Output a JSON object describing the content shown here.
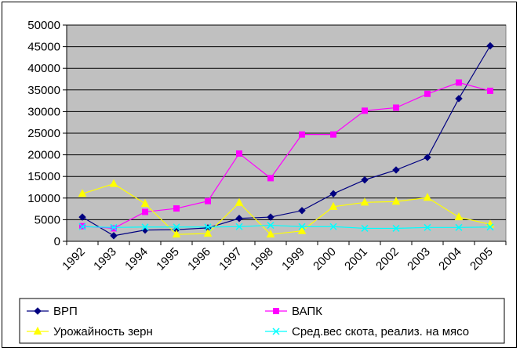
{
  "chart_data": {
    "type": "line",
    "title": "",
    "xlabel": "",
    "ylabel": "",
    "categories": [
      "1992",
      "1993",
      "1994",
      "1995",
      "1996",
      "1997",
      "1998",
      "1999",
      "2000",
      "2001",
      "2002",
      "2003",
      "2004",
      "2005"
    ],
    "ylim": [
      0,
      50000
    ],
    "yticks": [
      0,
      5000,
      10000,
      15000,
      20000,
      25000,
      30000,
      35000,
      40000,
      45000,
      50000
    ],
    "grid": "horizontal",
    "plot_background": "#C0C0C0",
    "legend_position": "bottom",
    "series": [
      {
        "name": "ВРП",
        "color": "#000080",
        "marker": "diamond",
        "values": [
          5600,
          1300,
          2600,
          2700,
          3100,
          5300,
          5600,
          7100,
          11000,
          14200,
          16500,
          19400,
          33000,
          45200
        ]
      },
      {
        "name": "ВАПК",
        "color": "#FF00FF",
        "marker": "square",
        "values": [
          3500,
          3000,
          6800,
          7600,
          9300,
          20300,
          14600,
          24700,
          24700,
          30200,
          30900,
          34100,
          36700,
          34800
        ]
      },
      {
        "name": "Урожайность зерн",
        "color": "#FFFF00",
        "marker": "triangle",
        "values": [
          11000,
          13300,
          8700,
          1600,
          1800,
          8900,
          1600,
          2400,
          8000,
          9000,
          9200,
          10100,
          5600,
          3900
        ]
      },
      {
        "name": "Сред.вес скота, реализ. на мясо",
        "color": "#00FFFF",
        "marker": "x",
        "values": [
          3400,
          3200,
          3300,
          3300,
          3300,
          3400,
          3700,
          3400,
          3400,
          3000,
          3000,
          3200,
          3200,
          3300
        ]
      }
    ]
  }
}
